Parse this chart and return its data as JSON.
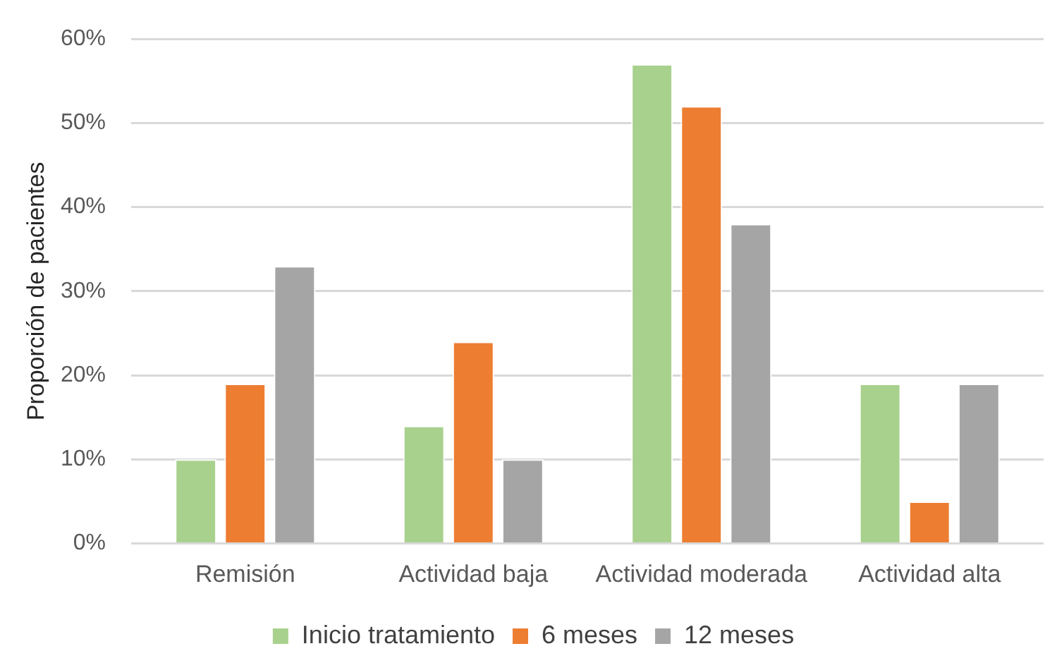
{
  "chart_data": {
    "type": "bar",
    "ylabel": "Proporción de pacientes",
    "categories": [
      "Remisión",
      "Actividad baja",
      "Actividad moderada",
      "Actividad alta"
    ],
    "series": [
      {
        "name": "Inicio tratamiento",
        "color": "#a9d18e",
        "values": [
          10,
          14,
          57,
          19
        ]
      },
      {
        "name": "6 meses",
        "color": "#ed7d31",
        "values": [
          19,
          24,
          52,
          5
        ]
      },
      {
        "name": "12 meses",
        "color": "#a5a5a5",
        "values": [
          33,
          10,
          38,
          19
        ]
      }
    ],
    "ylim": [
      0,
      60
    ],
    "yticks": [
      {
        "value": 0,
        "label": "0%"
      },
      {
        "value": 10,
        "label": "10%"
      },
      {
        "value": 20,
        "label": "20%"
      },
      {
        "value": 30,
        "label": "30%"
      },
      {
        "value": 40,
        "label": "40%"
      },
      {
        "value": 50,
        "label": "50%"
      },
      {
        "value": 60,
        "label": "60%"
      }
    ],
    "grid": "y",
    "legend": "bottom"
  }
}
